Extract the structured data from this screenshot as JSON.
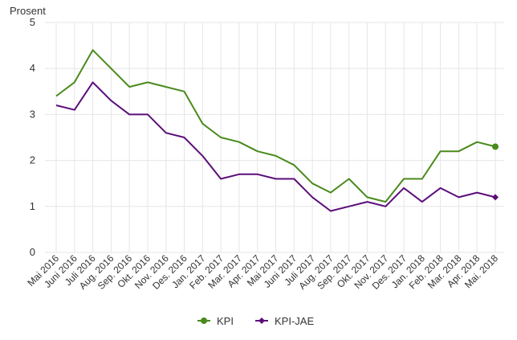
{
  "chart_data": {
    "type": "line",
    "ylabel": "Prosent",
    "ylim": [
      0,
      5
    ],
    "yticks": [
      "0",
      "1",
      "2",
      "3",
      "4",
      "5"
    ],
    "grid": true,
    "legend_position": "bottom",
    "categories": [
      "Mai 2016",
      "Juni 2016",
      "Juli 2016",
      "Aug. 2016",
      "Sep. 2016",
      "Okt. 2016",
      "Nov. 2016",
      "Des. 2016",
      "Jan. 2017",
      "Feb. 2017",
      "Mar. 2017",
      "Apr. 2017",
      "Mai 2017",
      "Juni 2017",
      "Juli 2017",
      "Aug. 2017",
      "Sep. 2017",
      "Okt. 2017",
      "Nov. 2017",
      "Des. 2017",
      "Jan. 2018",
      "Feb. 2018",
      "Mar. 2018",
      "Apr. 2018",
      "Mai. 2018"
    ],
    "series": [
      {
        "name": "KPI",
        "color": "#4a8a1c",
        "marker": "circle",
        "values": [
          3.4,
          3.7,
          4.4,
          4.0,
          3.6,
          3.7,
          3.6,
          3.5,
          2.8,
          2.5,
          2.4,
          2.2,
          2.1,
          1.9,
          1.5,
          1.3,
          1.6,
          1.2,
          1.1,
          1.6,
          1.6,
          2.2,
          2.2,
          2.4,
          2.3
        ]
      },
      {
        "name": "KPI-JAE",
        "color": "#5c0e7a",
        "marker": "diamond",
        "values": [
          3.2,
          3.1,
          3.7,
          3.3,
          3.0,
          3.0,
          2.6,
          2.5,
          2.1,
          1.6,
          1.7,
          1.7,
          1.6,
          1.6,
          1.2,
          0.9,
          1.0,
          1.1,
          1.0,
          1.4,
          1.1,
          1.4,
          1.2,
          1.3,
          1.2
        ]
      }
    ]
  }
}
